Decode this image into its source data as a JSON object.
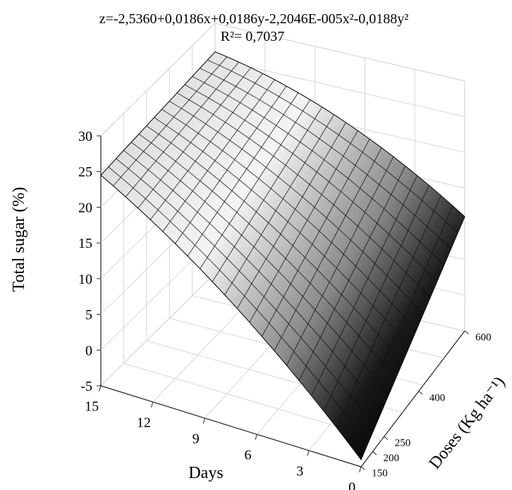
{
  "chart_data": {
    "type": "surface",
    "title": "z=-2,5360+0,0186x+0,0186y-2,2046E-005x²-0,0188y²",
    "subtitle": "R²= 0,7037",
    "xlabel": "Days",
    "ylabel": "Doses (Kg ha⁻¹)",
    "zlabel": "Total sugar (%)",
    "x_ticks": [
      "15",
      "12",
      "9",
      "6",
      "3",
      "0"
    ],
    "y_ticks": [
      "150",
      "200",
      "250",
      "400",
      "600"
    ],
    "z_ticks": [
      "30",
      "25",
      "20",
      "15",
      "10",
      "5",
      "0",
      "-5"
    ],
    "xlim": [
      0,
      15
    ],
    "ylim": [
      150,
      600
    ],
    "zlim": [
      -5,
      30
    ],
    "grid": true,
    "surface_corners": [
      {
        "days": 15,
        "dose": 150,
        "total_sugar": 24.5
      },
      {
        "days": 15,
        "dose": 600,
        "total_sugar": 26
      },
      {
        "days": 0,
        "dose": 150,
        "total_sugar": -4
      },
      {
        "days": 0,
        "dose": 600,
        "total_sugar": 11
      }
    ]
  }
}
